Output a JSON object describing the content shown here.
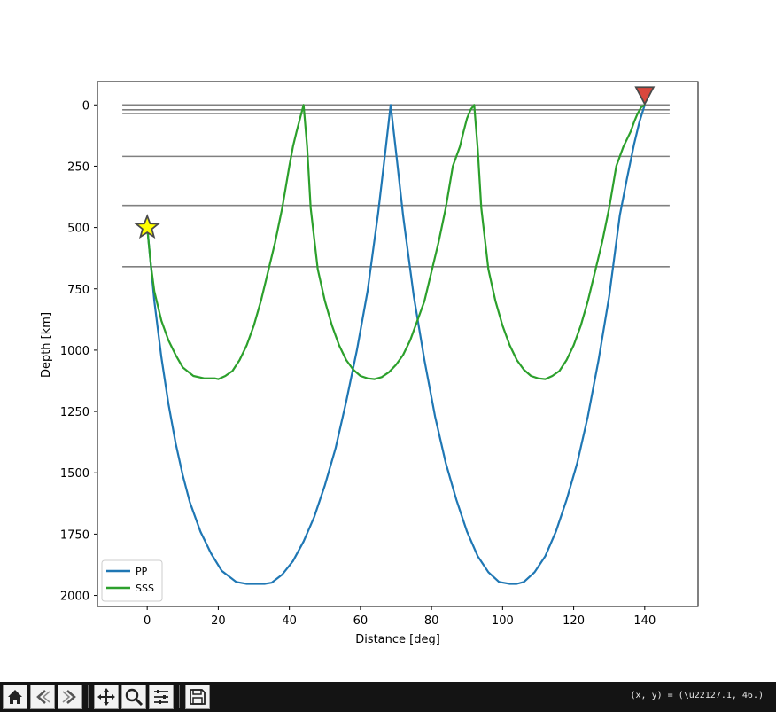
{
  "toolbar": {
    "buttons": [
      {
        "name": "home-icon",
        "label": "Home"
      },
      {
        "name": "back-icon",
        "label": "Back"
      },
      {
        "name": "forward-icon",
        "label": "Forward"
      },
      {
        "name": "pan-icon",
        "label": "Pan"
      },
      {
        "name": "zoom-icon",
        "label": "Zoom"
      },
      {
        "name": "subplots-icon",
        "label": "Configure subplots"
      },
      {
        "name": "save-icon",
        "label": "Save"
      }
    ],
    "coordinate_readout": "(x, y) = (\\u22127.1, 46.)"
  },
  "chart_data": {
    "type": "line",
    "title": "",
    "xlabel": "Distance [deg]",
    "ylabel": "Depth [km]",
    "xlim": [
      -14,
      155
    ],
    "ylim": [
      2045,
      -95
    ],
    "y_inverted": true,
    "xticks": [
      0,
      20,
      40,
      60,
      80,
      100,
      120,
      140
    ],
    "yticks": [
      0,
      250,
      500,
      750,
      1000,
      1250,
      1500,
      1750,
      2000
    ],
    "grid": false,
    "legend": {
      "placement": "lower-left"
    },
    "layer_boundaries": {
      "x_range": [
        -7,
        147
      ],
      "depths": [
        0,
        20,
        35,
        210,
        410,
        660
      ],
      "color": "#808080"
    },
    "source": {
      "marker": "star",
      "distance": 0,
      "depth": 500,
      "color": "#ffff00"
    },
    "receiver": {
      "marker": "triangle-down",
      "distance": 140,
      "depth": 0,
      "color": "#d9473d"
    },
    "series": [
      {
        "name": "PP",
        "color": "#1f77b4",
        "x": [
          0,
          2,
          4,
          6,
          8,
          10,
          12,
          15,
          18,
          21,
          25,
          28,
          31,
          33,
          35,
          38,
          41,
          44,
          47,
          50,
          53,
          56,
          59,
          62,
          65,
          67,
          68.5,
          70,
          72,
          75,
          78,
          81,
          84,
          87,
          90,
          93,
          96,
          99,
          102,
          104,
          106,
          109,
          112,
          115,
          118,
          121,
          124,
          127,
          130,
          133,
          135,
          137,
          138.5,
          140
        ],
        "y": [
          500,
          800,
          1030,
          1220,
          1380,
          1510,
          1620,
          1740,
          1830,
          1900,
          1945,
          1953,
          1953,
          1953,
          1948,
          1915,
          1860,
          1780,
          1680,
          1550,
          1400,
          1210,
          1000,
          760,
          440,
          190,
          0,
          190,
          450,
          780,
          1040,
          1270,
          1460,
          1610,
          1740,
          1840,
          1905,
          1945,
          1953,
          1953,
          1945,
          1905,
          1840,
          1740,
          1610,
          1460,
          1270,
          1040,
          780,
          450,
          300,
          160,
          70,
          0
        ]
      },
      {
        "name": "SSS",
        "color": "#2ca02c",
        "x": [
          0,
          1,
          2,
          4,
          6,
          8,
          10,
          13,
          16,
          19,
          20,
          22,
          24,
          26,
          28,
          30,
          32,
          34,
          36,
          38,
          40,
          41,
          42,
          43,
          44,
          45,
          46,
          48,
          50,
          52,
          54,
          56,
          58,
          60,
          62,
          64,
          66,
          68,
          70,
          72,
          74,
          76,
          78,
          80,
          82,
          84,
          86,
          88,
          89,
          90,
          91,
          92,
          93,
          94,
          96,
          98,
          100,
          102,
          104,
          106,
          108,
          110,
          112,
          114,
          116,
          118,
          120,
          122,
          124,
          126,
          128,
          130,
          132,
          134,
          136,
          137,
          138,
          139,
          140
        ],
        "y": [
          500,
          650,
          760,
          880,
          960,
          1020,
          1070,
          1105,
          1115,
          1115,
          1118,
          1105,
          1085,
          1040,
          980,
          900,
          800,
          680,
          560,
          420,
          250,
          170,
          110,
          55,
          0,
          170,
          420,
          670,
          800,
          900,
          980,
          1040,
          1080,
          1105,
          1115,
          1118,
          1110,
          1090,
          1060,
          1020,
          960,
          880,
          800,
          680,
          560,
          420,
          250,
          170,
          110,
          55,
          20,
          0,
          180,
          420,
          670,
          800,
          900,
          980,
          1040,
          1080,
          1105,
          1115,
          1118,
          1105,
          1085,
          1040,
          980,
          900,
          800,
          680,
          560,
          420,
          250,
          170,
          110,
          70,
          35,
          10,
          0
        ]
      }
    ]
  }
}
